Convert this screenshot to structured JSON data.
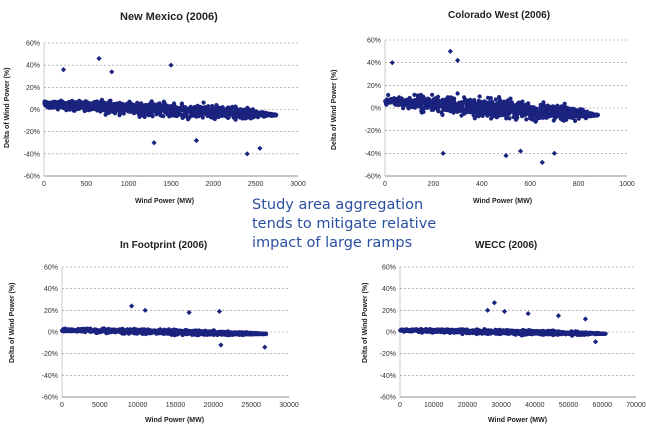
{
  "caption": {
    "line1": "Study area aggregation",
    "line2": "tends to mitigate relative",
    "line3": "impact of large ramps"
  },
  "colors": {
    "points": "#1a237e",
    "grid": "#8c8c8c",
    "caption": "#2b4fa0"
  },
  "chart_data": [
    {
      "type": "scatter",
      "title": "New Mexico (2006)",
      "xlabel": "Wind Power (MW)",
      "ylabel": "Delta of Wind Power (%)",
      "xlim": [
        0,
        3000
      ],
      "ylim": [
        -60,
        60
      ],
      "xticks": [
        "0",
        "500",
        "1000",
        "1500",
        "2000",
        "2500",
        "3000"
      ],
      "yticks": [
        "-60%",
        "-40%",
        "-20%",
        "0%",
        "20%",
        "40%",
        "60%"
      ],
      "grid": "horizontal dashed",
      "data_xmax": 2750,
      "band_peak": 25,
      "extremes": [
        [
          650,
          46
        ],
        [
          230,
          36
        ],
        [
          800,
          34
        ],
        [
          1500,
          40
        ],
        [
          2400,
          -40
        ],
        [
          1300,
          -30
        ],
        [
          1800,
          -28
        ],
        [
          2550,
          -35
        ]
      ]
    },
    {
      "type": "scatter",
      "title": "Colorado West (2006)",
      "xlabel": "Wind Power (MW)",
      "ylabel": "Delta of Wind Power (%)",
      "xlim": [
        0,
        1000
      ],
      "ylim": [
        -60,
        60
      ],
      "xticks": [
        "0",
        "200",
        "400",
        "600",
        "800",
        "1000"
      ],
      "yticks": [
        "-60%",
        "-40%",
        "-20%",
        "0%",
        "20%",
        "40%",
        "60%"
      ],
      "grid": "horizontal dashed",
      "data_xmax": 880,
      "band_peak": 32,
      "extremes": [
        [
          270,
          50
        ],
        [
          30,
          40
        ],
        [
          300,
          42
        ],
        [
          240,
          -40
        ],
        [
          500,
          -42
        ],
        [
          650,
          -48
        ],
        [
          700,
          -40
        ],
        [
          560,
          -38
        ]
      ]
    },
    {
      "type": "scatter",
      "title": "In Footprint (2006)",
      "xlabel": "Wind Power (MW)",
      "ylabel": "Delta of Wind Power (%)",
      "xlim": [
        0,
        30000
      ],
      "ylim": [
        -60,
        60
      ],
      "xticks": [
        "0",
        "5000",
        "10000",
        "15000",
        "20000",
        "25000",
        "30000"
      ],
      "yticks": [
        "-60%",
        "-40%",
        "-20%",
        "0%",
        "20%",
        "40%",
        "60%"
      ],
      "grid": "horizontal dashed",
      "data_xmax": 27000,
      "band_peak": 9,
      "extremes": [
        [
          9200,
          24
        ],
        [
          11000,
          20
        ],
        [
          16800,
          18
        ],
        [
          20800,
          19
        ],
        [
          21000,
          -12
        ],
        [
          26800,
          -14
        ]
      ]
    },
    {
      "type": "scatter",
      "title": "WECC (2006)",
      "xlabel": "Wind Power (MW)",
      "ylabel": "Delta of Wind Power (%)",
      "xlim": [
        0,
        70000
      ],
      "ylim": [
        -60,
        60
      ],
      "xticks": [
        "0",
        "10000",
        "20000",
        "30000",
        "40000",
        "50000",
        "60000",
        "70000"
      ],
      "yticks": [
        "-60%",
        "-40%",
        "-20%",
        "0%",
        "20%",
        "40%",
        "60%"
      ],
      "grid": "horizontal dashed",
      "data_xmax": 61000,
      "band_peak": 8,
      "extremes": [
        [
          28000,
          27
        ],
        [
          26000,
          20
        ],
        [
          31000,
          19
        ],
        [
          38000,
          17
        ],
        [
          47000,
          15
        ],
        [
          55000,
          12
        ],
        [
          58000,
          -9
        ]
      ]
    }
  ]
}
